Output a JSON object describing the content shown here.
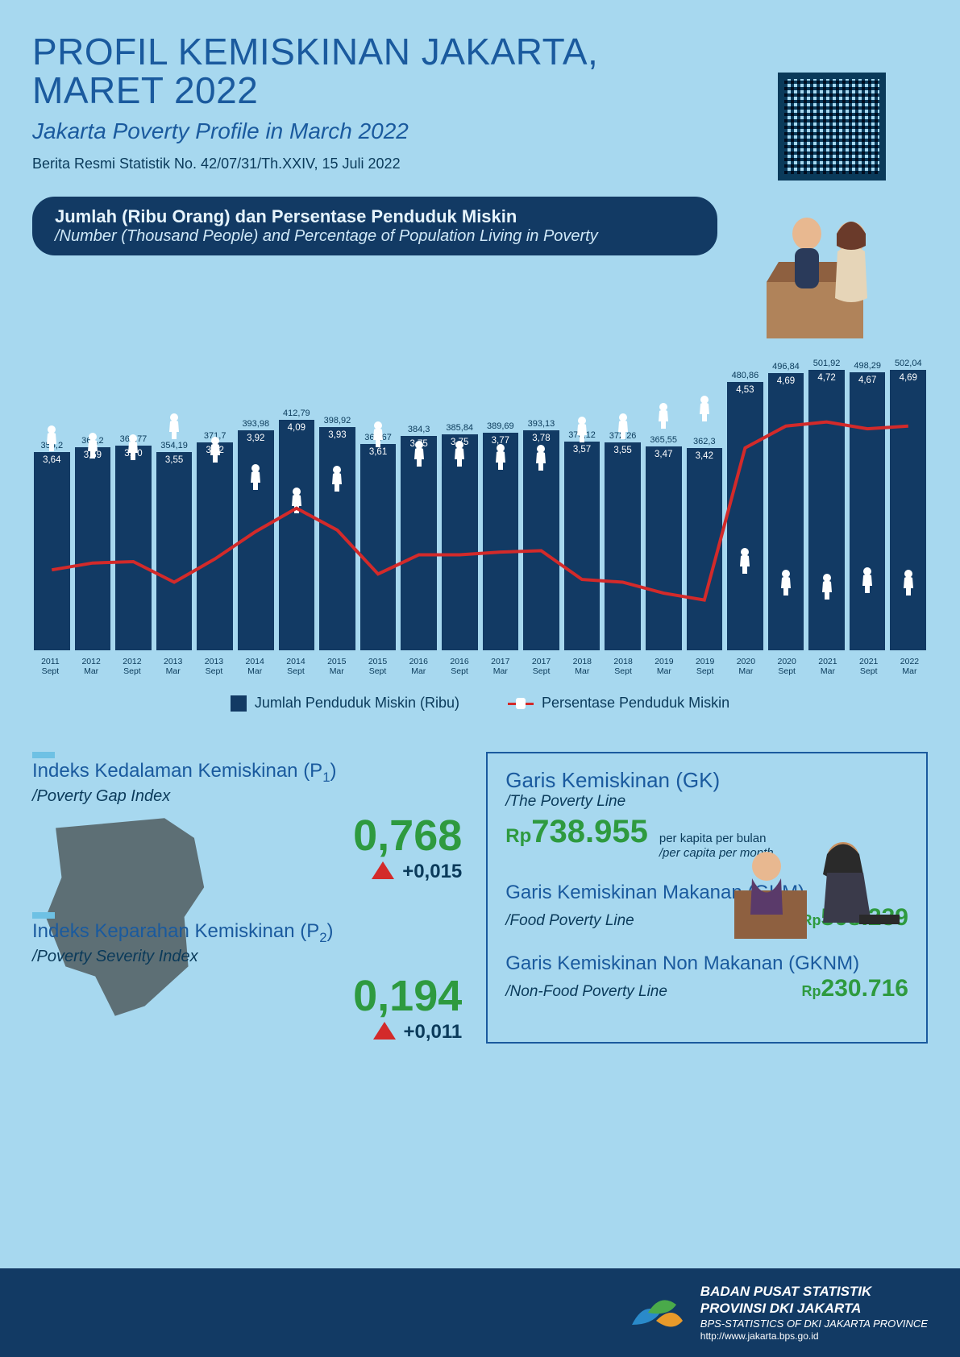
{
  "colors": {
    "bg": "#a7d8ef",
    "primary": "#1a5a9e",
    "darkNavy": "#123a64",
    "darkText": "#0a3a5a",
    "green": "#2e9a3f",
    "red": "#d32a2a",
    "accentBar": "#6ec1e4",
    "white": "#ffffff",
    "mapFill": "#5a6a6f"
  },
  "header": {
    "title_line1": "PROFIL KEMISKINAN JAKARTA,",
    "title_line2": "MARET 2022",
    "subtitle": "Jakarta Poverty Profile in March 2022",
    "reference": "Berita Resmi Statistik No. 42/07/31/Th.XXIV, 15 Juli 2022"
  },
  "section1": {
    "line1": "Jumlah (Ribu Orang) dan Persentase Penduduk Miskin",
    "line2": "/Number (Thousand People) and Percentage of Population Living in Poverty"
  },
  "chart": {
    "type": "bar+line",
    "ylim_bar": [
      0,
      520
    ],
    "bar_color": "#123a64",
    "line_color": "#d32a2a",
    "value_fontsize": 11,
    "pct_fontsize": 11.5,
    "categories": [
      {
        "y": "2011",
        "p": "Sept"
      },
      {
        "y": "2012",
        "p": "Mar"
      },
      {
        "y": "2012",
        "p": "Sept"
      },
      {
        "y": "2013",
        "p": "Mar"
      },
      {
        "y": "2013",
        "p": "Sept"
      },
      {
        "y": "2014",
        "p": "Mar"
      },
      {
        "y": "2014",
        "p": "Sept"
      },
      {
        "y": "2015",
        "p": "Mar"
      },
      {
        "y": "2015",
        "p": "Sept"
      },
      {
        "y": "2016",
        "p": "Mar"
      },
      {
        "y": "2016",
        "p": "Sept"
      },
      {
        "y": "2017",
        "p": "Mar"
      },
      {
        "y": "2017",
        "p": "Sept"
      },
      {
        "y": "2018",
        "p": "Mar"
      },
      {
        "y": "2018",
        "p": "Sept"
      },
      {
        "y": "2019",
        "p": "Mar"
      },
      {
        "y": "2019",
        "p": "Sept"
      },
      {
        "y": "2020",
        "p": "Mar"
      },
      {
        "y": "2020",
        "p": "Sept"
      },
      {
        "y": "2021",
        "p": "Mar"
      },
      {
        "y": "2021",
        "p": "Sept"
      },
      {
        "y": "2022",
        "p": "Mar"
      }
    ],
    "bar_values": [
      355.2,
      363.2,
      366.77,
      354.19,
      371.7,
      393.98,
      412.79,
      398.92,
      368.67,
      384.3,
      385.84,
      389.69,
      393.13,
      373.12,
      372.26,
      365.55,
      362.3,
      480.86,
      496.84,
      501.92,
      498.29,
      502.04
    ],
    "bar_labels": [
      "355,2",
      "363,2",
      "366,77",
      "354,19",
      "371,7",
      "393,98",
      "412,79",
      "398,92",
      "368,67",
      "384,3",
      "385,84",
      "389,69",
      "393,13",
      "373,12",
      "372,26",
      "365,55",
      "362,3",
      "480,86",
      "496,84",
      "501,92",
      "498,29",
      "502,04"
    ],
    "pct_values": [
      3.64,
      3.69,
      3.7,
      3.55,
      3.72,
      3.92,
      4.09,
      3.93,
      3.61,
      3.75,
      3.75,
      3.77,
      3.78,
      3.57,
      3.55,
      3.47,
      3.42,
      4.53,
      4.69,
      4.72,
      4.67,
      4.69
    ],
    "pct_labels": [
      "3,64",
      "3,69",
      "3,70",
      "3,55",
      "3,72",
      "3,92",
      "4,09",
      "3,93",
      "3,61",
      "3,75",
      "3,75",
      "3,77",
      "3,78",
      "3,57",
      "3,55",
      "3,47",
      "3,42",
      "4,53",
      "4,69",
      "4,72",
      "4,67",
      "4,69"
    ],
    "legend_bar": "Jumlah Penduduk Miskin (Ribu)",
    "legend_line": "Persentase Penduduk Miskin"
  },
  "indices": {
    "p1_title": "Indeks Kedalaman Kemiskinan (P₁)",
    "p1_sub": "/Poverty Gap Index",
    "p1_value": "0,768",
    "p1_delta": "+0,015",
    "p2_title": "Indeks Keparahan Kemiskinan (P₂)",
    "p2_sub": "/Poverty Severity Index",
    "p2_value": "0,194",
    "p2_delta": "+0,011"
  },
  "gk": {
    "title": "Garis Kemiskinan (GK)",
    "sub": "/The Poverty Line",
    "value_prefix": "Rp",
    "value": "738.955",
    "note1": "per kapita per bulan",
    "note2": "/per capita per month",
    "gkm_title": "Garis Kemiskinan Makanan (GKM)",
    "gkm_sub": "/Food Poverty Line",
    "gkm_value": "508.239",
    "gknm_title": "Garis Kemiskinan Non Makanan (GKNM)",
    "gknm_sub": "/Non-Food Poverty Line",
    "gknm_value": "230.716"
  },
  "footer": {
    "org1": "BADAN PUSAT STATISTIK",
    "org2": "PROVINSI DKI JAKARTA",
    "org3": "BPS-STATISTICS OF DKI JAKARTA PROVINCE",
    "url": "http://www.jakarta.bps.go.id"
  }
}
